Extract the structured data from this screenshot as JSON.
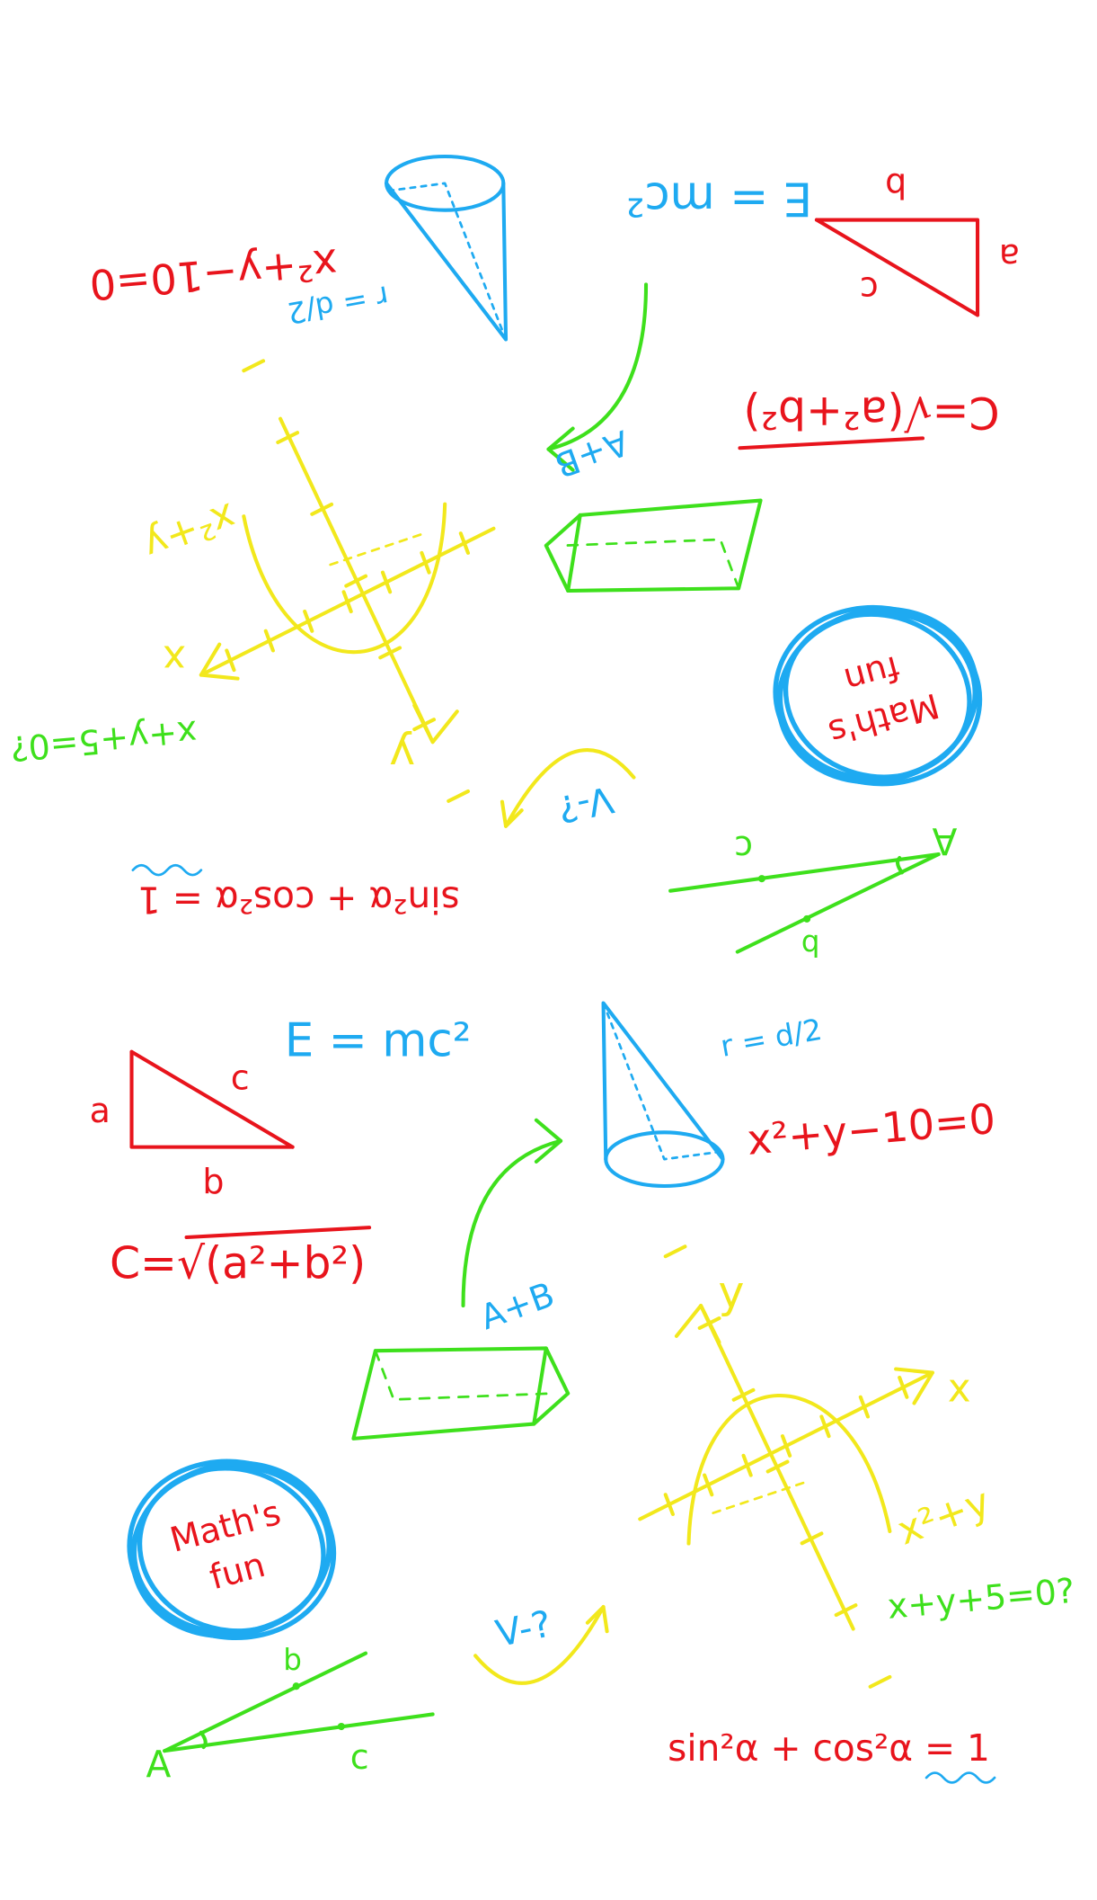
{
  "doodles": {
    "energy": "E = mc²",
    "triangle": {
      "a": "a",
      "b": "b",
      "c": "c"
    },
    "hypotenuse": "C=√(a²+b²)",
    "cone_radius": "r = d/2",
    "circle_eq": "x²+y−10=0",
    "prism_label": "A+B",
    "axes": {
      "x": "x",
      "y": "y",
      "expr": "x²+y"
    },
    "plane_eq": "x+y+5=0?",
    "bubble": [
      "Math's",
      "fun"
    ],
    "volume": "V-?",
    "angle": {
      "A": "A",
      "b": "b",
      "c": "c"
    },
    "identity": "sin²α + cos²α = 1"
  }
}
